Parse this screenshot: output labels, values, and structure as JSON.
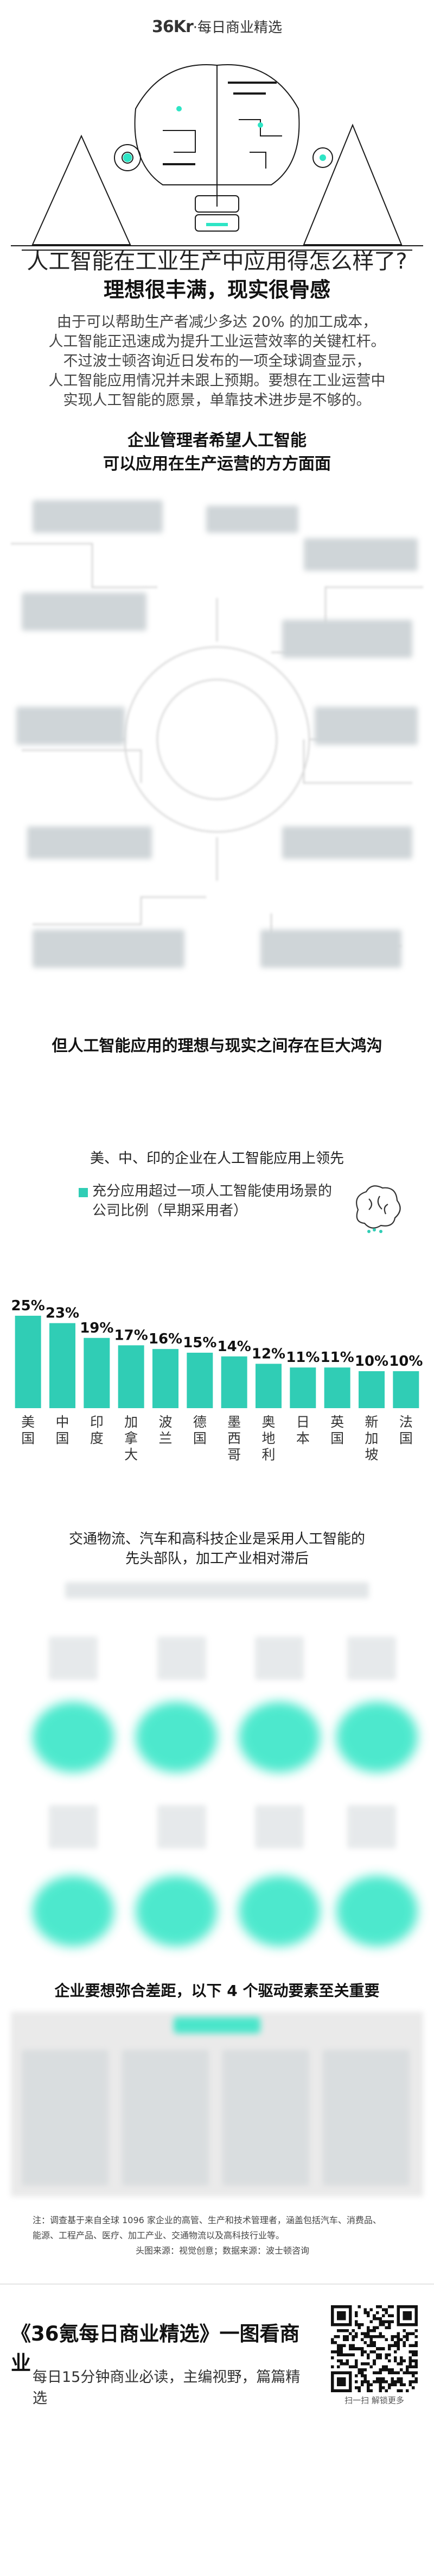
{
  "header": {
    "brand_logo": "36Kr",
    "brand_dot": "·",
    "brand_name": "每日商业精选"
  },
  "article": {
    "title": "人工智能在工业生产中应用得怎么样了?",
    "subtitle": "理想很丰满，现实很骨感",
    "intro_lines": [
      "由于可以帮助生产者减少多达 20% 的加工成本，",
      "人工智能正迅速成为提升工业运营效率的关键杠杆。",
      "不过波士顿咨询近日发布的一项全球调查显示，",
      "人工智能应用情况并未跟上预期。要想在工业运营中",
      "实现人工智能的愿景，单靠技术进步是不够的。"
    ]
  },
  "section1": {
    "title_line1": "企业管理者希望人工智能",
    "title_line2": "可以应用在生产运营的方方面面"
  },
  "section2": {
    "title": "但人工智能应用的理想与现实之间存在巨大鸿沟",
    "chart_heading": "美、中、印的企业在人工智能应用上领先",
    "legend_line1": "充分应用超过一项人工智能使用场景的",
    "legend_line2": "公司比例（早期采用者）",
    "accent_color": "#30cdb5"
  },
  "chart_data": {
    "type": "bar",
    "categories": [
      "美国",
      "中国",
      "印度",
      "加拿大",
      "波兰",
      "德国",
      "墨西哥",
      "奥地利",
      "日本",
      "英国",
      "新加坡",
      "法国"
    ],
    "values": [
      25,
      23,
      19,
      17,
      16,
      15,
      14,
      12,
      11,
      11,
      10,
      10
    ],
    "value_labels": [
      "25%",
      "23%",
      "19%",
      "17%",
      "16%",
      "15%",
      "14%",
      "12%",
      "11%",
      "11%",
      "10%",
      "10%"
    ],
    "ylim": [
      0,
      25
    ]
  },
  "section3": {
    "title_line1": "交通物流、汽车和高科技企业是采用人工智能的",
    "title_line2": "先头部队，加工产业相对滞后"
  },
  "section4": {
    "title": "企业要想弥合差距，以下 4 个驱动要素至关重要"
  },
  "note": {
    "line1": "注：调查基于来自全球 1096 家企业的高管、生产和技术管理者，涵盖包括汽车、消费品、",
    "line2": "能源、工程产品、医疗、加工产业、交通物流以及高科技行业等。",
    "line3": "头图来源：视觉创意；数据来源：波士顿咨询"
  },
  "footer": {
    "title": "《36氪每日商业精选》一图看商业",
    "subtitle": "每日15分钟商业必读，主编视野，篇篇精选",
    "qr_caption": "扫一扫 解锁更多"
  }
}
